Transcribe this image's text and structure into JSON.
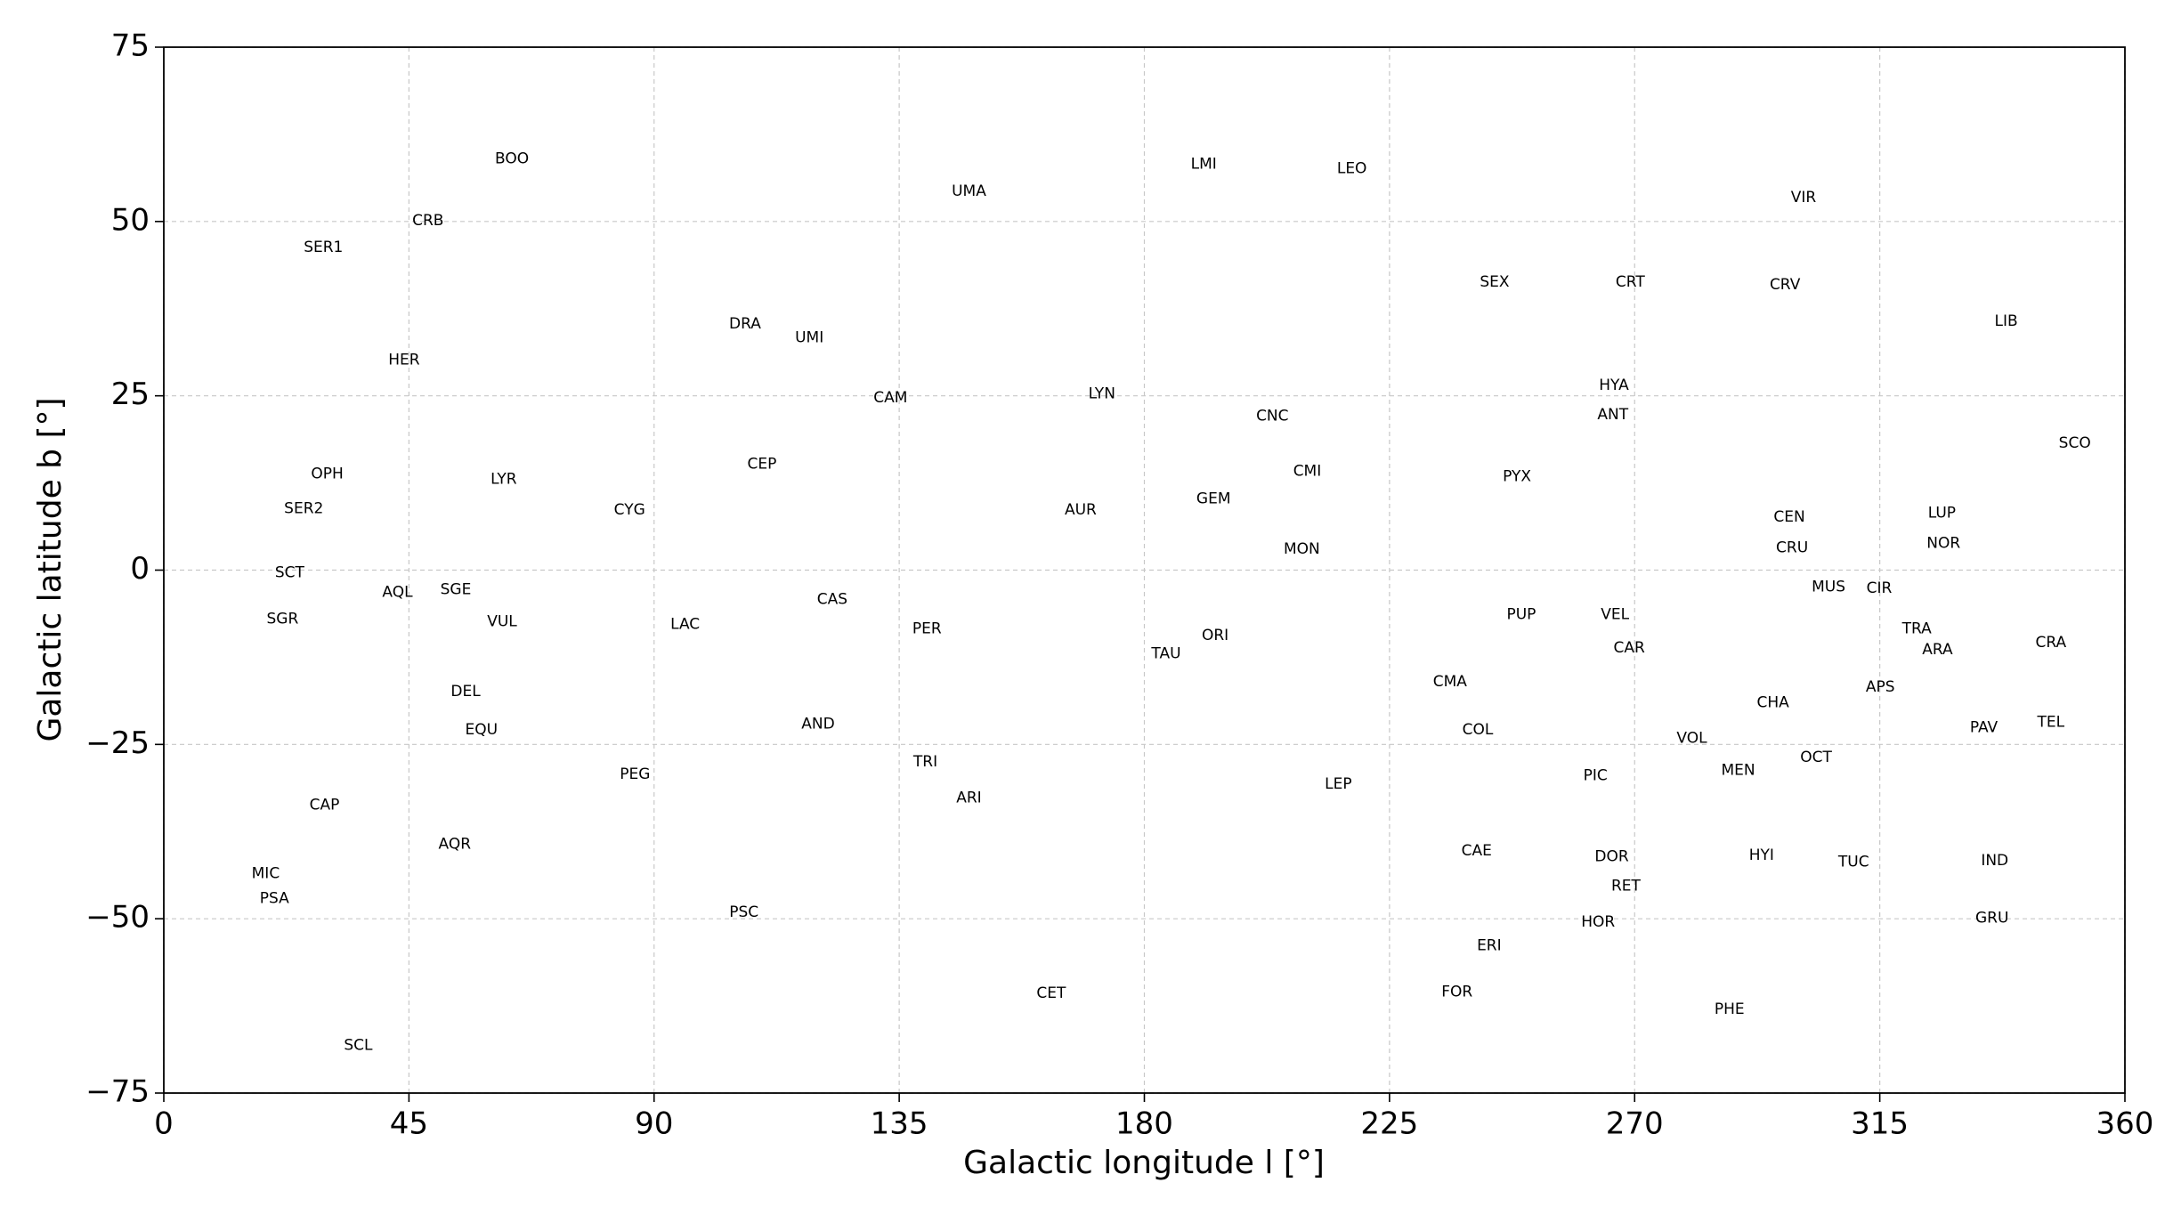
{
  "chart_data": {
    "type": "sky-map",
    "xlabel": "Galactic longitude l [°]",
    "ylabel": "Galactic latitude b [°]",
    "xlim": [
      0,
      360
    ],
    "ylim": [
      -75,
      75
    ],
    "xticks": [
      0,
      45,
      90,
      135,
      180,
      225,
      270,
      315,
      360
    ],
    "yticks": [
      {
        "value": -75,
        "label": "−75"
      },
      {
        "value": -50,
        "label": "−50"
      },
      {
        "value": -25,
        "label": "−25"
      },
      0,
      25,
      50,
      75
    ],
    "grid": true,
    "annotations": [
      {
        "text": "BOO",
        "l": 63.9,
        "b": 59.0
      },
      {
        "text": "CRB",
        "l": 48.5,
        "b": 50.1
      },
      {
        "text": "SER1",
        "l": 29.3,
        "b": 46.3
      },
      {
        "text": "HER",
        "l": 44.1,
        "b": 30.1
      },
      {
        "text": "OPH",
        "l": 30.0,
        "b": 13.8
      },
      {
        "text": "SER2",
        "l": 25.7,
        "b": 8.8
      },
      {
        "text": "SCT",
        "l": 23.1,
        "b": -0.4
      },
      {
        "text": "SGR",
        "l": 21.8,
        "b": -7.0
      },
      {
        "text": "AQL",
        "l": 42.9,
        "b": -3.2
      },
      {
        "text": "SGE",
        "l": 53.6,
        "b": -2.8
      },
      {
        "text": "VUL",
        "l": 62.1,
        "b": -7.4
      },
      {
        "text": "LYR",
        "l": 62.4,
        "b": 13.0
      },
      {
        "text": "CYG",
        "l": 85.5,
        "b": 8.6
      },
      {
        "text": "LAC",
        "l": 95.7,
        "b": -7.8
      },
      {
        "text": "DEL",
        "l": 55.4,
        "b": -17.4
      },
      {
        "text": "EQU",
        "l": 58.3,
        "b": -22.9
      },
      {
        "text": "CAP",
        "l": 29.5,
        "b": -33.7
      },
      {
        "text": "AQR",
        "l": 53.4,
        "b": -39.3
      },
      {
        "text": "MIC",
        "l": 18.7,
        "b": -43.5
      },
      {
        "text": "PSA",
        "l": 20.3,
        "b": -47.1
      },
      {
        "text": "SCL",
        "l": 35.7,
        "b": -68.2
      },
      {
        "text": "PEG",
        "l": 86.5,
        "b": -29.3
      },
      {
        "text": "AND",
        "l": 120.1,
        "b": -22.1
      },
      {
        "text": "DRA",
        "l": 106.7,
        "b": 35.3
      },
      {
        "text": "UMI",
        "l": 118.5,
        "b": 33.3
      },
      {
        "text": "UMA",
        "l": 147.8,
        "b": 54.3
      },
      {
        "text": "CAM",
        "l": 133.4,
        "b": 24.7
      },
      {
        "text": "CEP",
        "l": 109.8,
        "b": 15.2
      },
      {
        "text": "CAS",
        "l": 122.7,
        "b": -4.2
      },
      {
        "text": "PER",
        "l": 140.1,
        "b": -8.4
      },
      {
        "text": "TRI",
        "l": 139.8,
        "b": -27.5
      },
      {
        "text": "ARI",
        "l": 147.8,
        "b": -32.7
      },
      {
        "text": "PSC",
        "l": 106.5,
        "b": -49.1
      },
      {
        "text": "CET",
        "l": 162.9,
        "b": -60.7
      },
      {
        "text": "LMI",
        "l": 190.9,
        "b": 58.2
      },
      {
        "text": "LEO",
        "l": 218.1,
        "b": 57.6
      },
      {
        "text": "LYN",
        "l": 172.2,
        "b": 25.3
      },
      {
        "text": "AUR",
        "l": 168.3,
        "b": 8.6
      },
      {
        "text": "GEM",
        "l": 192.7,
        "b": 10.2
      },
      {
        "text": "CNC",
        "l": 203.5,
        "b": 22.1
      },
      {
        "text": "CMI",
        "l": 209.9,
        "b": 14.2
      },
      {
        "text": "MON",
        "l": 208.9,
        "b": 3.0
      },
      {
        "text": "ORI",
        "l": 193.0,
        "b": -9.4
      },
      {
        "text": "TAU",
        "l": 184.0,
        "b": -12.0
      },
      {
        "text": "LEP",
        "l": 215.6,
        "b": -30.7
      },
      {
        "text": "CMA",
        "l": 236.1,
        "b": -16.0
      },
      {
        "text": "COL",
        "l": 241.2,
        "b": -22.9
      },
      {
        "text": "CAE",
        "l": 241.0,
        "b": -40.3
      },
      {
        "text": "ERI",
        "l": 243.3,
        "b": -53.9
      },
      {
        "text": "FOR",
        "l": 237.4,
        "b": -60.5
      },
      {
        "text": "SEX",
        "l": 244.3,
        "b": 41.3
      },
      {
        "text": "CRT",
        "l": 269.2,
        "b": 41.3
      },
      {
        "text": "HYA",
        "l": 266.2,
        "b": 26.5
      },
      {
        "text": "ANT",
        "l": 266.0,
        "b": 22.3
      },
      {
        "text": "PYX",
        "l": 248.4,
        "b": 13.4
      },
      {
        "text": "PUP",
        "l": 249.2,
        "b": -6.4
      },
      {
        "text": "VEL",
        "l": 266.4,
        "b": -6.4
      },
      {
        "text": "CAR",
        "l": 269.0,
        "b": -11.2
      },
      {
        "text": "VOL",
        "l": 280.5,
        "b": -24.1
      },
      {
        "text": "PIC",
        "l": 262.8,
        "b": -29.5
      },
      {
        "text": "DOR",
        "l": 265.8,
        "b": -41.1
      },
      {
        "text": "RET",
        "l": 268.4,
        "b": -45.3
      },
      {
        "text": "HOR",
        "l": 263.3,
        "b": -50.5
      },
      {
        "text": "MEN",
        "l": 289.0,
        "b": -28.7
      },
      {
        "text": "HYI",
        "l": 293.3,
        "b": -40.9
      },
      {
        "text": "PHE",
        "l": 287.4,
        "b": -63.0
      },
      {
        "text": "VIR",
        "l": 301.0,
        "b": 53.4
      },
      {
        "text": "CRV",
        "l": 297.6,
        "b": 40.9
      },
      {
        "text": "CEN",
        "l": 298.4,
        "b": 7.6
      },
      {
        "text": "CRU",
        "l": 298.9,
        "b": 3.2
      },
      {
        "text": "MUS",
        "l": 305.6,
        "b": -2.4
      },
      {
        "text": "CHA",
        "l": 295.4,
        "b": -19.0
      },
      {
        "text": "OCT",
        "l": 303.3,
        "b": -26.9
      },
      {
        "text": "TUC",
        "l": 310.2,
        "b": -41.9
      },
      {
        "text": "CIR",
        "l": 314.9,
        "b": -2.6
      },
      {
        "text": "TRA",
        "l": 321.8,
        "b": -8.4
      },
      {
        "text": "APS",
        "l": 315.1,
        "b": -16.8
      },
      {
        "text": "ARA",
        "l": 325.6,
        "b": -11.4
      },
      {
        "text": "LUP",
        "l": 326.4,
        "b": 8.2
      },
      {
        "text": "NOR",
        "l": 326.7,
        "b": 3.8
      },
      {
        "text": "LIB",
        "l": 338.2,
        "b": 35.7
      },
      {
        "text": "SCO",
        "l": 350.8,
        "b": 18.2
      },
      {
        "text": "CRA",
        "l": 346.4,
        "b": -10.4
      },
      {
        "text": "PAV",
        "l": 334.1,
        "b": -22.6
      },
      {
        "text": "TEL",
        "l": 346.4,
        "b": -21.8
      },
      {
        "text": "IND",
        "l": 336.1,
        "b": -41.7
      },
      {
        "text": "GRU",
        "l": 335.6,
        "b": -49.9
      }
    ]
  }
}
